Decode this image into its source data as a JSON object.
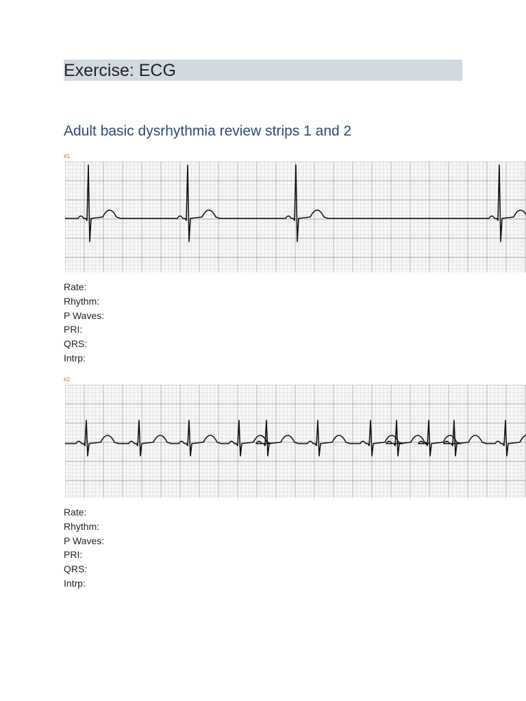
{
  "header": {
    "title": "Exercise: ECG"
  },
  "subtitle": "Adult basic dysrhythmia review strips 1 and 2",
  "strips": [
    {
      "label": "#1",
      "fields": [
        "Rate:",
        "Rhythm:",
        "P Waves:",
        "PRI:",
        "QRS:",
        "Intrp:"
      ]
    },
    {
      "label": "#2",
      "fields": [
        "Rate:",
        "Rhythm:",
        "P Waves:",
        "PRI:",
        "QRS:",
        "Intrp:"
      ]
    }
  ]
}
